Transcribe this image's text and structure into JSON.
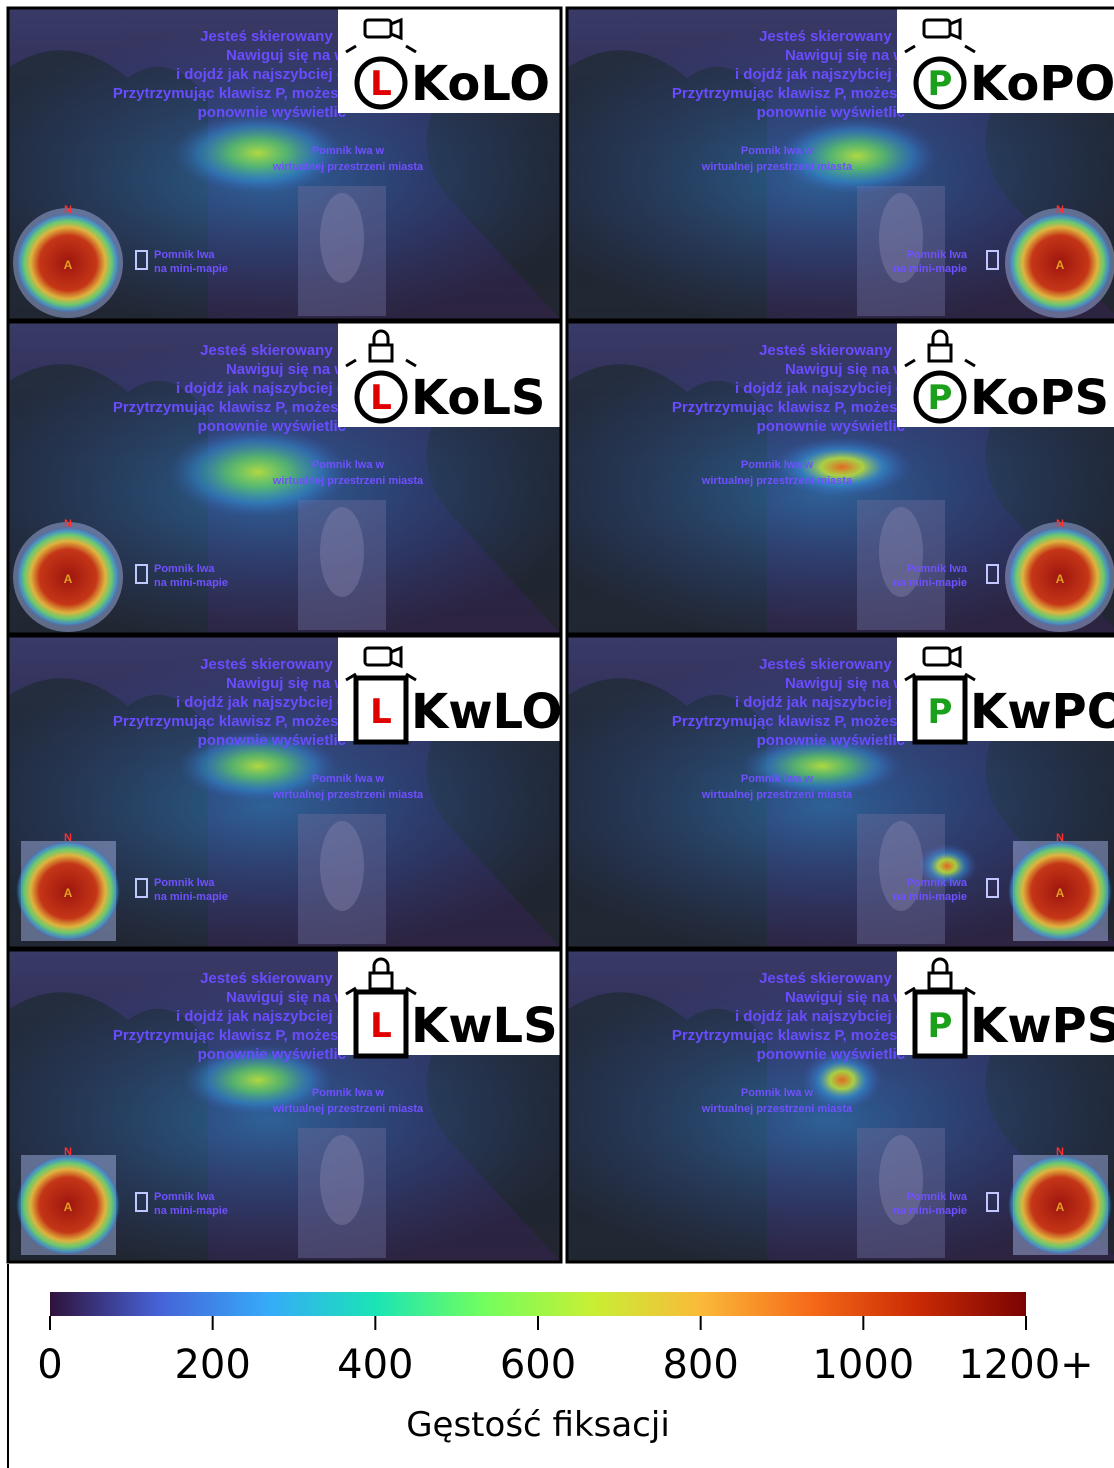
{
  "panels": [
    {
      "label": "KoLO",
      "icon": "L",
      "icon_color": "#e00000"
    },
    {
      "label": "KoPO",
      "icon": "P",
      "icon_color": "#1aa01a"
    },
    {
      "label": "KoLS",
      "icon": "L",
      "icon_color": "#e00000"
    },
    {
      "label": "KoPS",
      "icon": "P",
      "icon_color": "#1aa01a"
    },
    {
      "label": "KwLO",
      "icon": "L",
      "icon_color": "#e00000"
    },
    {
      "label": "KwPO",
      "icon": "P",
      "icon_color": "#1aa01a"
    },
    {
      "label": "KwLS",
      "icon": "L",
      "icon_color": "#e00000"
    },
    {
      "label": "KwPS",
      "icon": "P",
      "icon_color": "#1aa01a"
    }
  ],
  "scene_text": {
    "instructions": [
      "Jesteś skierowany n",
      "Nawiguj się na w",
      "i dojdź jak najszybciej d",
      "Przytrzymując klawisz P, możesz",
      "ponownie wyświetlić"
    ],
    "monument_label": [
      "Pomnik lwa w",
      "wirtualnej przestrzeni miasta"
    ],
    "minimap_label": [
      "Pomnik lwa",
      "na mini-mapie"
    ],
    "north": "N",
    "player": "A"
  },
  "colorbar": {
    "label": "Gęstość fiksacji",
    "lim": [
      0,
      1200
    ],
    "ticks": [
      0,
      200,
      400,
      600,
      800,
      1000,
      {
        "value": 1200,
        "label": "1200+"
      }
    ],
    "colors": [
      "#30123b",
      "#4662d7",
      "#36aaf9",
      "#1ae4b6",
      "#72fe5e",
      "#c8ef34",
      "#faba39",
      "#f66b19",
      "#ca2a04",
      "#7a0403"
    ]
  }
}
